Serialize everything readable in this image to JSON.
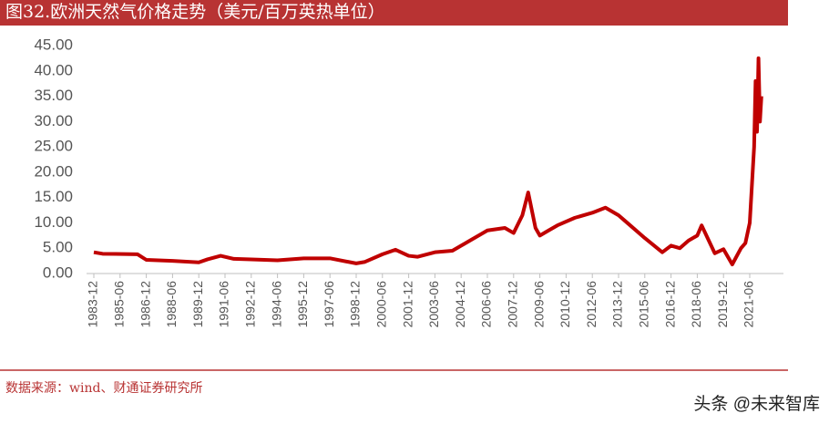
{
  "chart_data": {
    "type": "line",
    "title": "图32.欧洲天然气价格走势（美元/百万英热单位）",
    "source": "数据来源：wind、财通证券研究所",
    "watermark": "头条 @未来智库",
    "x": [
      "1983-12",
      "1984-06",
      "1986-06",
      "1986-12",
      "1988-06",
      "1989-12",
      "1990-06",
      "1991-03",
      "1991-12",
      "1992-12",
      "1994-06",
      "1995-12",
      "1997-06",
      "1998-12",
      "1999-06",
      "2000-06",
      "2001-03",
      "2001-12",
      "2002-06",
      "2003-06",
      "2004-06",
      "2005-06",
      "2006-06",
      "2007-06",
      "2007-12",
      "2008-06",
      "2008-10",
      "2009-03",
      "2009-06",
      "2009-12",
      "2010-06",
      "2011-06",
      "2012-06",
      "2013-03",
      "2013-12",
      "2014-06",
      "2015-06",
      "2016-06",
      "2016-12",
      "2017-06",
      "2017-12",
      "2018-06",
      "2018-09",
      "2019-06",
      "2019-12",
      "2020-06",
      "2020-12",
      "2021-03",
      "2021-06",
      "2021-09",
      "2021-10",
      "2021-11",
      "2021-12",
      "2022-01",
      "2022-02"
    ],
    "series": [
      {
        "name": "欧洲天然气价格",
        "color": "#c00000",
        "values": [
          4.2,
          3.9,
          3.8,
          2.7,
          2.5,
          2.2,
          2.8,
          3.5,
          2.9,
          2.8,
          2.6,
          3.0,
          3.0,
          2.0,
          2.3,
          3.8,
          4.7,
          3.5,
          3.3,
          4.2,
          4.5,
          6.5,
          8.5,
          9.0,
          8.0,
          11.5,
          16.0,
          9.0,
          7.5,
          8.5,
          9.5,
          11.0,
          12.0,
          13.0,
          11.5,
          10.0,
          7.0,
          4.2,
          5.5,
          5.0,
          6.5,
          7.5,
          9.5,
          4.0,
          4.8,
          1.8,
          5.0,
          6.0,
          10.0,
          25,
          38,
          28,
          42.5,
          30,
          35
        ]
      }
    ],
    "xticks": [
      "1983-12",
      "1985-06",
      "1986-12",
      "1988-06",
      "1989-12",
      "1991-06",
      "1992-12",
      "1994-06",
      "1995-12",
      "1997-06",
      "1998-12",
      "2000-06",
      "2001-12",
      "2003-06",
      "2004-12",
      "2006-06",
      "2007-12",
      "2009-06",
      "2010-12",
      "2012-06",
      "2013-12",
      "2015-06",
      "2016-12",
      "2018-06",
      "2019-12",
      "2021-06"
    ],
    "ylim": [
      0,
      45
    ],
    "yticks": [
      {
        "value": 0,
        "label": "0.00"
      },
      {
        "value": 5,
        "label": "5.00"
      },
      {
        "value": 10,
        "label": "10.00"
      },
      {
        "value": 15,
        "label": "15.00"
      },
      {
        "value": 20,
        "label": "20.00"
      },
      {
        "value": 25,
        "label": "25.00"
      },
      {
        "value": 30,
        "label": "30.00"
      },
      {
        "value": 35,
        "label": "35.00"
      },
      {
        "value": 40,
        "label": "40.00"
      },
      {
        "value": 45,
        "label": "45.00"
      }
    ]
  }
}
